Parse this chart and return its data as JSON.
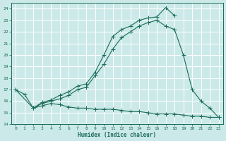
{
  "xlabel": "Humidex (Indice chaleur)",
  "bg_color": "#cce9e9",
  "grid_color": "#ffffff",
  "line_color": "#1a6b5a",
  "xlim": [
    -0.5,
    23.5
  ],
  "ylim": [
    14,
    24.5
  ],
  "yticks": [
    14,
    15,
    16,
    17,
    18,
    19,
    20,
    21,
    22,
    23,
    24
  ],
  "xticks": [
    0,
    1,
    2,
    3,
    4,
    5,
    6,
    7,
    8,
    9,
    10,
    11,
    12,
    13,
    14,
    15,
    16,
    17,
    18,
    19,
    20,
    21,
    22,
    23
  ],
  "line1_x": [
    0,
    1,
    2,
    3,
    4,
    5,
    6,
    7,
    8,
    9,
    10,
    11,
    12,
    13,
    14,
    15,
    16,
    17,
    18
  ],
  "line1_y": [
    17.0,
    16.6,
    15.4,
    15.9,
    16.1,
    16.5,
    16.8,
    17.3,
    17.5,
    18.5,
    20.0,
    21.6,
    22.2,
    22.5,
    23.0,
    23.2,
    23.3,
    24.1,
    23.4
  ],
  "line2_x": [
    0,
    2,
    3,
    4,
    5,
    6,
    7,
    8,
    9,
    10,
    11,
    12,
    13,
    14,
    15,
    16,
    17,
    18,
    19,
    20,
    21,
    22,
    23
  ],
  "line2_y": [
    17.0,
    15.4,
    15.8,
    16.0,
    16.2,
    16.5,
    17.0,
    17.2,
    18.2,
    19.2,
    20.5,
    21.5,
    22.0,
    22.5,
    22.8,
    23.0,
    22.5,
    22.2,
    20.0,
    17.0,
    16.0,
    15.4,
    14.6
  ],
  "line3_x": [
    2,
    3,
    4,
    5,
    6,
    7,
    8,
    9,
    10,
    11,
    12,
    13,
    14,
    15,
    16,
    17,
    18,
    19,
    20,
    21,
    22,
    23
  ],
  "line3_y": [
    15.4,
    15.6,
    15.8,
    15.7,
    15.5,
    15.4,
    15.4,
    15.3,
    15.3,
    15.3,
    15.2,
    15.1,
    15.1,
    15.0,
    14.9,
    14.9,
    14.9,
    14.8,
    14.7,
    14.7,
    14.6,
    14.6
  ]
}
